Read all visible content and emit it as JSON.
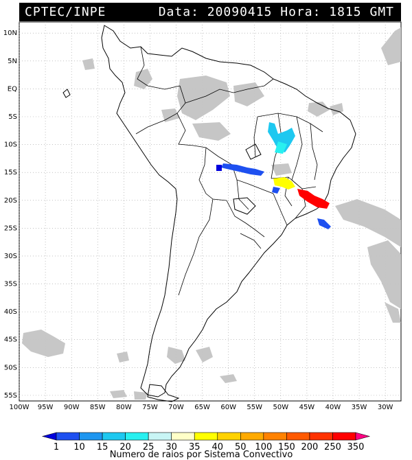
{
  "header": {
    "org": "CPTEC/INPE",
    "info": "Data: 20090415 Hora: 1815 GMT"
  },
  "map": {
    "lat_labels": [
      "10N",
      "5N",
      "EQ",
      "5S",
      "10S",
      "15S",
      "20S",
      "25S",
      "30S",
      "35S",
      "40S",
      "45S",
      "50S",
      "55S"
    ],
    "lon_labels": [
      "100W",
      "95W",
      "90W",
      "85W",
      "80W",
      "75W",
      "70W",
      "65W",
      "60W",
      "55W",
      "50W",
      "45W",
      "40W",
      "35W",
      "30W"
    ],
    "lat_range": [
      12,
      -56
    ],
    "lon_range": [
      -100,
      -27
    ],
    "grid": "dotted"
  },
  "colorbar": {
    "ticks": [
      "1",
      "10",
      "15",
      "20",
      "25",
      "30",
      "35",
      "40",
      "50",
      "100",
      "150",
      "200",
      "250",
      "350"
    ],
    "colors": [
      "#0000dd",
      "#1e50f0",
      "#1e96f0",
      "#1ec8f0",
      "#28f0f0",
      "#c8f5f5",
      "#ffffc8",
      "#ffff00",
      "#ffd200",
      "#ffaa00",
      "#ff8200",
      "#ff5a00",
      "#ff3200",
      "#ff0000",
      "#ff0082"
    ],
    "title": "Numero de raios por Sistema Convectivo"
  },
  "colors": {
    "cloud": "#c4c4c4",
    "coast": "#000000",
    "grid": "#9a9a9a"
  }
}
